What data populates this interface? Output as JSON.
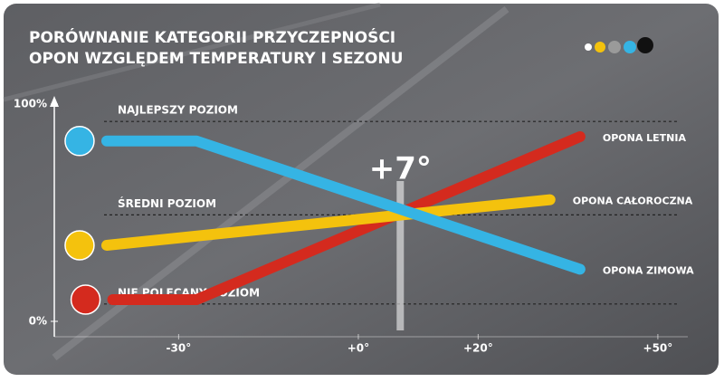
{
  "chart_data": {
    "type": "line",
    "title": [
      "PORÓWNANIE KATEGORII PRZYCZEPNOŚCI",
      "OPON WZGLĘDEM TEMPERATURY I SEZONU"
    ],
    "annotation": {
      "x": 7,
      "label": "+7°"
    },
    "xlim": [
      -50,
      55
    ],
    "xticks": [
      {
        "value": -30,
        "label": "-30°"
      },
      {
        "value": 0,
        "label": "+0°"
      },
      {
        "value": 20,
        "label": "+20°"
      },
      {
        "value": 50,
        "label": "+50°"
      }
    ],
    "ylim": [
      0,
      100
    ],
    "yticks": [
      {
        "value": 0,
        "label": "0%"
      },
      {
        "value": 100,
        "label": "100%"
      }
    ],
    "reference_lines": [
      {
        "value": 92,
        "label": "NAJLEPSZY POZIOM"
      },
      {
        "value": 49,
        "label": "ŚREDNI POZIOM"
      },
      {
        "value": 8,
        "label": "NIE POLECANY POZIOM"
      }
    ],
    "series": [
      {
        "name": "OPONA LETNIA",
        "color": "#d42a1e",
        "x": [
          -41,
          -27,
          37
        ],
        "values": [
          10,
          10,
          85
        ]
      },
      {
        "name": "OPONA CAŁOROCZNA",
        "color": "#f4c20d",
        "x": [
          -42,
          32
        ],
        "values": [
          35,
          56
        ]
      },
      {
        "name": "OPONA ZIMOWA",
        "color": "#35b4e4",
        "x": [
          -42,
          -27,
          37
        ],
        "values": [
          83,
          83,
          24
        ]
      }
    ]
  }
}
